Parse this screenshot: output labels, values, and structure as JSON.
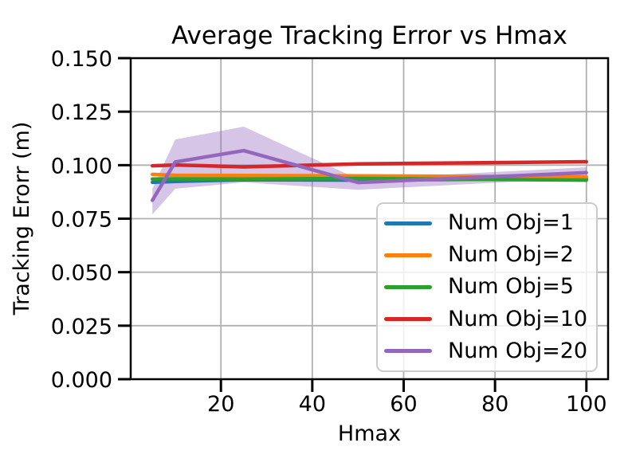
{
  "chart_data": {
    "type": "line",
    "title": "Average Tracking Error vs Hmax",
    "xlabel": "Hmax",
    "ylabel": "Tracking Erorr (m)",
    "x": [
      5,
      10,
      25,
      50,
      100
    ],
    "xlim": [
      0.25,
      104.75
    ],
    "ylim": [
      0.0,
      0.15
    ],
    "xticks": [
      20,
      40,
      60,
      80,
      100
    ],
    "yticks": [
      0.0,
      0.025,
      0.05,
      0.075,
      0.1,
      0.125,
      0.15
    ],
    "ytick_decimals": 3,
    "grid": true,
    "legend_position": "lower-right-inside",
    "series": [
      {
        "name": "Num Obj=1",
        "color": "#1f77b4",
        "values": [
          0.092,
          0.0924,
          0.0932,
          0.093,
          0.0938
        ]
      },
      {
        "name": "Num Obj=2",
        "color": "#ff7f0e",
        "values": [
          0.0957,
          0.0953,
          0.0952,
          0.095,
          0.0945
        ]
      },
      {
        "name": "Num Obj=5",
        "color": "#2ca02c",
        "values": [
          0.0935,
          0.0936,
          0.0935,
          0.0938,
          0.093
        ]
      },
      {
        "name": "Num Obj=10",
        "color": "#d62728",
        "values": [
          0.0997,
          0.1001,
          0.0992,
          0.1006,
          0.1016
        ]
      },
      {
        "name": "Num Obj=20",
        "color": "#9467bd",
        "values": [
          0.0836,
          0.1015,
          0.1068,
          0.0919,
          0.0965
        ],
        "band": {
          "upper": [
            0.089,
            0.112,
            0.118,
            0.0935,
            0.099
          ],
          "lower": [
            0.077,
            0.089,
            0.092,
            0.0885,
            0.094
          ],
          "opacity": 0.38
        }
      }
    ],
    "colors": {
      "background": "#ffffff",
      "grid": "#b0b0b0",
      "spine": "#000000",
      "text": "#000000",
      "legend_border": "#cbcbcb"
    }
  }
}
